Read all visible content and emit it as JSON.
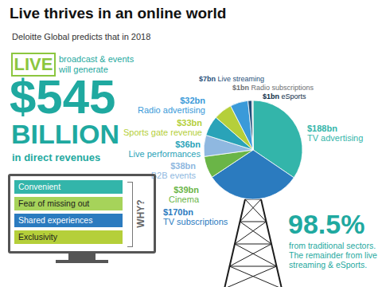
{
  "chart_data": {
    "type": "pie",
    "title": "Live thrives in an online world",
    "subtitle": "Deloitte Global predicts that in 2018",
    "categories": [
      "TV advertising",
      "TV subscriptions",
      "Cinema",
      "B2B events",
      "Live performances",
      "Sports gate revenue",
      "Radio advertising",
      "Live streaming",
      "Radio subscriptions",
      "eSports"
    ],
    "values": [
      188,
      170,
      39,
      38,
      36,
      33,
      32,
      7,
      1,
      1
    ],
    "value_labels": [
      "$188bn",
      "$170bn",
      "$39bn",
      "$38bn",
      "$36bn",
      "$33bn",
      "$32bn",
      "$7bn",
      "$1bn",
      "$1bn"
    ],
    "colors": [
      "#33b5aa",
      "#2b7bbf",
      "#6ab547",
      "#8fb8e0",
      "#2aa3b8",
      "#b5cf3a",
      "#3a9ad9",
      "#1f4e79",
      "#6d6e71",
      "#0b2a45"
    ],
    "data_labels": true,
    "annotations": {
      "badge": "LIVE",
      "lead": [
        "broadcast & events",
        "will generate"
      ],
      "total": {
        "value": 545,
        "label": "$545"
      },
      "unit": "BILLION",
      "revenue_note": "in direct revenues",
      "reasons_heading": "WHY?",
      "reasons": [
        "Convenient",
        "Fear of missing out",
        "Shared experiences",
        "Exclusivity"
      ],
      "share": {
        "value": 98.5,
        "label": "98.5%"
      },
      "share_note": [
        "from traditional sectors.",
        "The remainder from live",
        "streaming & eSports."
      ]
    }
  }
}
